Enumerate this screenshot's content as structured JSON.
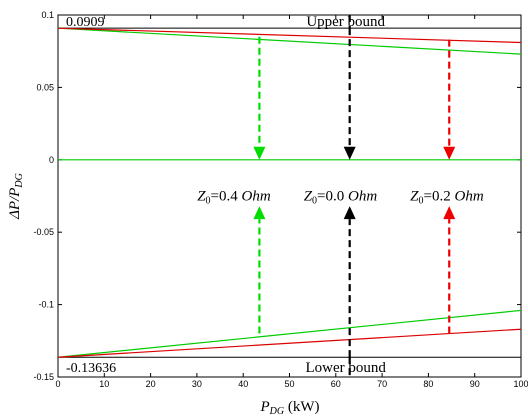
{
  "chart_data": {
    "type": "line",
    "xlabel": {
      "main": "P",
      "sub": "DG",
      "unit": " (kW)"
    },
    "ylabel": {
      "main": "ΔP/P",
      "sub": "DG"
    },
    "xlim": [
      0,
      100
    ],
    "ylim": [
      -0.15,
      0.1
    ],
    "xticks": [
      0,
      10,
      20,
      30,
      40,
      50,
      60,
      70,
      80,
      90,
      100
    ],
    "yticks": [
      -0.15,
      -0.1,
      -0.05,
      0,
      0.05,
      0.1
    ],
    "ytick_labels": [
      "-0.15",
      "-0.1",
      "-0.05",
      "0",
      "0.05",
      "0.1"
    ],
    "grid": false,
    "series": [
      {
        "color": "#00cc00",
        "x": [
          0,
          100
        ],
        "y": [
          0.0909,
          0.073
        ]
      },
      {
        "color": "#dd0000",
        "x": [
          0,
          100
        ],
        "y": [
          0.0909,
          0.081
        ]
      },
      {
        "color": "#00cc00",
        "x": [
          0,
          100
        ],
        "y": [
          -0.13636,
          -0.104
        ]
      },
      {
        "color": "#dd0000",
        "x": [
          0,
          100
        ],
        "y": [
          -0.13636,
          -0.117
        ]
      },
      {
        "color": "#00cc00",
        "x": [
          0,
          100
        ],
        "y": [
          0,
          0
        ]
      }
    ],
    "bounds": [
      {
        "y": 0.0909,
        "value_label": "0.0909",
        "text": "Upper bound",
        "text_x": 63
      },
      {
        "y": -0.13636,
        "value_label": "-0.13636",
        "text": "Lower bound",
        "text_x": 63
      }
    ],
    "markers": [
      {
        "x": 63,
        "color": "#000000",
        "full_height": true,
        "top_arrow_from": 0.0909,
        "top_arrow_to": 0,
        "bottom_arrow_from": -0.1363,
        "bottom_arrow_to": -0.032
      },
      {
        "x": 43.5,
        "color": "#00dd00",
        "full_height": false,
        "top_arrow_from": 0.085,
        "top_arrow_to": 0,
        "bottom_arrow_from": -0.12,
        "bottom_arrow_to": -0.032
      },
      {
        "x": 84.5,
        "color": "#ee0000",
        "full_height": false,
        "top_arrow_from": 0.083,
        "top_arrow_to": 0,
        "bottom_arrow_from": -0.12,
        "bottom_arrow_to": -0.032
      }
    ],
    "annotations": [
      {
        "symbol": "Z",
        "sub": "0",
        "value": "=0.4 ",
        "unit": "Ohm",
        "x": 38,
        "y": -0.017
      },
      {
        "symbol": "Z",
        "sub": "0",
        "value": "=0.0 ",
        "unit": "Ohm",
        "x": 61,
        "y": -0.017
      },
      {
        "symbol": "Z",
        "sub": "0",
        "value": "=0.2 ",
        "unit": "Ohm",
        "x": 84,
        "y": -0.017
      }
    ]
  }
}
